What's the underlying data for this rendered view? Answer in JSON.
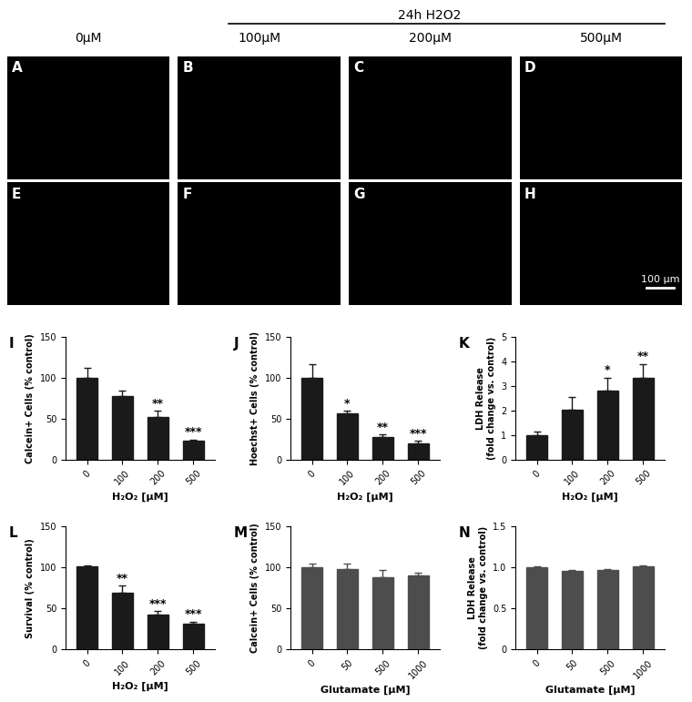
{
  "header": "24h H2O2",
  "columns": [
    "0µM",
    "100µM",
    "200µM",
    "500µM"
  ],
  "images": [
    {
      "label": "A"
    },
    {
      "label": "B"
    },
    {
      "label": "C"
    },
    {
      "label": "D"
    },
    {
      "label": "E"
    },
    {
      "label": "F"
    },
    {
      "label": "G"
    },
    {
      "label": "H"
    }
  ],
  "scale_bar": "100 µm",
  "chart_data": [
    {
      "type": "bar",
      "title": "I",
      "categories": [
        "0",
        "100",
        "200",
        "500"
      ],
      "values": [
        100,
        78,
        52,
        23
      ],
      "errors": [
        12,
        7,
        8,
        2
      ],
      "annotations": [
        null,
        null,
        "**",
        "***"
      ],
      "color": "#1a1a1a",
      "x_label": "H₂O₂ [µM]",
      "y_label": "Calcein+ Cells (% control)",
      "ylim": [
        0,
        150
      ],
      "yticks": [
        0,
        50,
        100,
        150
      ]
    },
    {
      "type": "bar",
      "title": "J",
      "categories": [
        "0",
        "100",
        "200",
        "500"
      ],
      "values": [
        100,
        57,
        28,
        20
      ],
      "errors": [
        17,
        3,
        3,
        3
      ],
      "annotations": [
        null,
        "*",
        "**",
        "***"
      ],
      "color": "#1a1a1a",
      "x_label": "H₂O₂ [µM]",
      "y_label": "Hoechst+ Cells (% control)",
      "ylim": [
        0,
        150
      ],
      "yticks": [
        0,
        50,
        100,
        150
      ]
    },
    {
      "type": "bar",
      "title": "K",
      "categories": [
        "0",
        "100",
        "200",
        "500"
      ],
      "values": [
        1.0,
        2.05,
        2.8,
        3.35
      ],
      "errors": [
        0.15,
        0.5,
        0.55,
        0.55
      ],
      "annotations": [
        null,
        null,
        "*",
        "**"
      ],
      "color": "#1a1a1a",
      "x_label": "H₂O₂ [µM]",
      "y_label": "LDH Release\n(fold change vs. control)",
      "ylim": [
        0,
        5
      ],
      "yticks": [
        0,
        1,
        2,
        3,
        4,
        5
      ]
    },
    {
      "type": "bar",
      "title": "L",
      "categories": [
        "0",
        "100",
        "200",
        "500"
      ],
      "values": [
        101,
        69,
        42,
        31
      ],
      "errors": [
        1,
        9,
        5,
        3
      ],
      "annotations": [
        null,
        "**",
        "***",
        "***"
      ],
      "color": "#1a1a1a",
      "x_label": "H₂O₂ [µM]",
      "y_label": "Survival (% control)",
      "ylim": [
        0,
        150
      ],
      "yticks": [
        0,
        50,
        100,
        150
      ]
    },
    {
      "type": "bar",
      "title": "M",
      "categories": [
        "0",
        "50",
        "500",
        "1000"
      ],
      "values": [
        100,
        98,
        88,
        90
      ],
      "errors": [
        5,
        7,
        9,
        4
      ],
      "annotations": [
        null,
        null,
        null,
        null
      ],
      "color": "#4d4d4d",
      "x_label": "Glutamate [µM]",
      "y_label": "Calcein+ Cells (% control)",
      "ylim": [
        0,
        150
      ],
      "yticks": [
        0,
        50,
        100,
        150
      ]
    },
    {
      "type": "bar",
      "title": "N",
      "categories": [
        "0",
        "50",
        "500",
        "1000"
      ],
      "values": [
        1.0,
        0.96,
        0.97,
        1.01
      ],
      "errors": [
        0.01,
        0.01,
        0.01,
        0.01
      ],
      "annotations": [
        null,
        null,
        null,
        null
      ],
      "color": "#4d4d4d",
      "x_label": "Glutamate [µM]",
      "y_label": "LDH Release\n(fold change vs. control)",
      "ylim": [
        0,
        1.5
      ],
      "yticks": [
        0,
        0.5,
        {
          "value": 1.0,
          "label": "1.0"
        },
        1.5
      ]
    }
  ]
}
